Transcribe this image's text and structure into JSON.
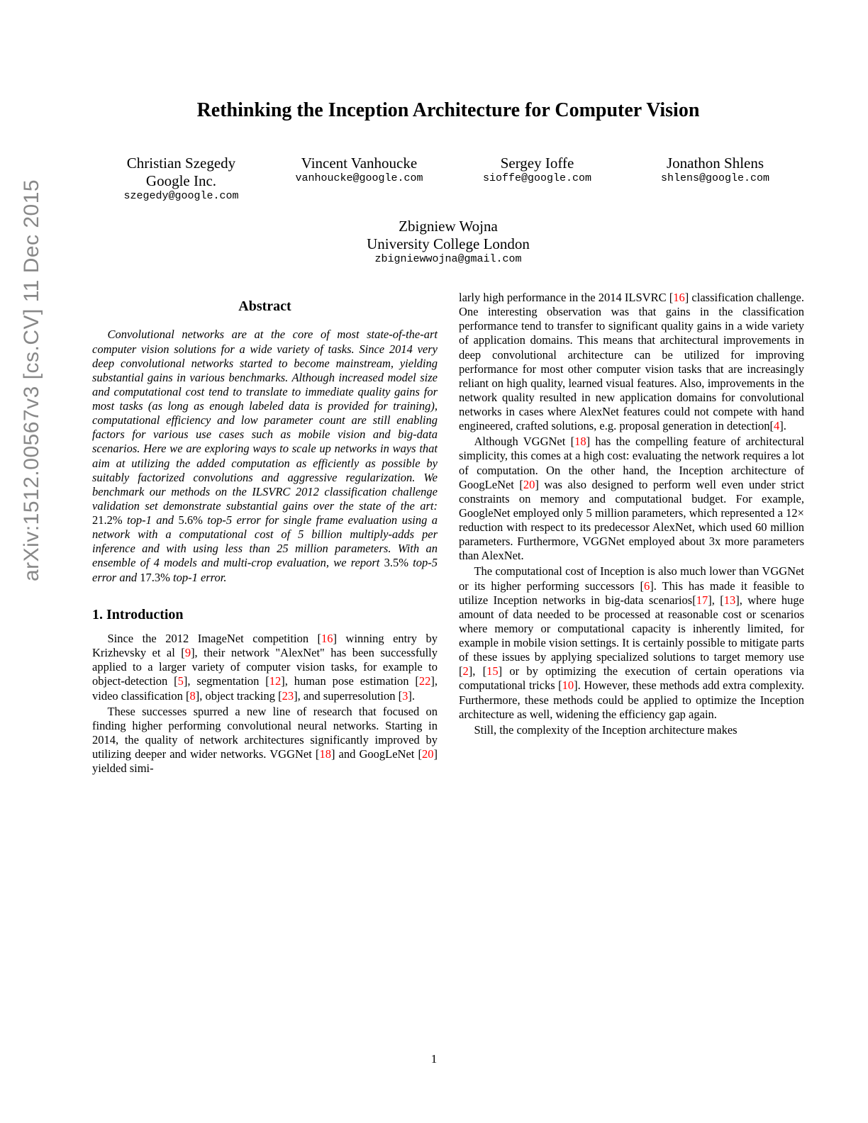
{
  "arxiv_tag": "arXiv:1512.00567v3  [cs.CV]  11 Dec 2015",
  "title": "Rethinking the Inception Architecture for Computer Vision",
  "authors": [
    {
      "name": "Christian Szegedy",
      "affil": "Google Inc.",
      "email": "szegedy@google.com"
    },
    {
      "name": "Vincent Vanhoucke",
      "affil": "",
      "email": "vanhoucke@google.com"
    },
    {
      "name": "Sergey Ioffe",
      "affil": "",
      "email": "sioffe@google.com"
    },
    {
      "name": "Jonathon Shlens",
      "affil": "",
      "email": "shlens@google.com"
    }
  ],
  "author5": {
    "name": "Zbigniew Wojna",
    "affil": "University College London",
    "email": "zbigniewwojna@gmail.com"
  },
  "abstract_heading": "Abstract",
  "abstract_p1a": "Convolutional networks are at the core of most state-of-the-art computer vision solutions for a wide variety of tasks. Since 2014 very deep convolutional networks started to become mainstream, yielding substantial gains in various benchmarks. Although increased model size and computational cost tend to translate to immediate quality gains for most tasks (as long as enough labeled data is provided for training), computational efficiency and low parameter count are still enabling factors for various use cases such as mobile vision and big-data scenarios. Here we are exploring ways to scale up networks in ways that aim at utilizing the added computation as efficiently as possible by suitably factorized convolutions and aggressive regularization. We benchmark our methods on the ILSVRC 2012 classification challenge validation set demonstrate substantial gains over the state of the art: ",
  "abstract_n1": "21.2%",
  "abstract_p1b": " top-1 and ",
  "abstract_n2": "5.6%",
  "abstract_p1c": " top-5 error for single frame evaluation using a network with a computational cost of 5 billion multiply-adds per inference and with using less than 25 million parameters. With an ensemble of 4 models and multi-crop evaluation, we report ",
  "abstract_n3": "3.5%",
  "abstract_p1d": " top-5 error and ",
  "abstract_n4": "17.3%",
  "abstract_p1e": " top-1 error.",
  "intro_heading": "1. Introduction",
  "intro_p1a": "Since the 2012 ImageNet competition [",
  "c16a": "16",
  "intro_p1b": "] winning entry by Krizhevsky et al [",
  "c9": "9",
  "intro_p1c": "], their network \"AlexNet\" has been successfully applied to a larger variety of computer vision tasks, for example to object-detection [",
  "c5": "5",
  "intro_p1d": "], segmentation [",
  "c12": "12",
  "intro_p1e": "], human pose estimation [",
  "c22": "22",
  "intro_p1f": "], video classification [",
  "c8": "8",
  "intro_p1g": "], object tracking [",
  "c23": "23",
  "intro_p1h": "], and superresolution [",
  "c3": "3",
  "intro_p1i": "].",
  "intro_p2a": "These successes spurred a new line of research that focused on finding higher performing convolutional neural networks. Starting in 2014, the quality of network architectures significantly improved by utilizing deeper and wider networks. VGGNet [",
  "c18a": "18",
  "intro_p2b": "] and GoogLeNet [",
  "c20a": "20",
  "intro_p2c": "] yielded simi-",
  "right_p1a": "larly high performance in the 2014 ILSVRC [",
  "c16b": "16",
  "right_p1b": "] classification challenge. One interesting observation was that gains in the classification performance tend to transfer to significant quality gains in a wide variety of application domains. This means that architectural improvements in deep convolutional architecture can be utilized for improving performance for most other computer vision tasks that are increasingly reliant on high quality, learned visual features. Also, improvements in the network quality resulted in new application domains for convolutional networks in cases where AlexNet features could not compete with hand engineered, crafted solutions, e.g. proposal generation in detection[",
  "c4": "4",
  "right_p1c": "].",
  "right_p2a": "Although VGGNet [",
  "c18b": "18",
  "right_p2b": "] has the compelling feature of architectural simplicity, this comes at a high cost: evaluating the network requires a lot of computation. On the other hand, the Inception architecture of GoogLeNet [",
  "c20b": "20",
  "right_p2c": "] was also designed to perform well even under strict constraints on memory and computational budget. For example, GoogleNet employed only 5 million parameters, which represented a 12× reduction with respect to its predecessor AlexNet, which used 60 million parameters. Furthermore, VGGNet employed about 3x more parameters than AlexNet.",
  "right_p3a": "The computational cost of Inception is also much lower than VGGNet or its higher performing successors [",
  "c6": "6",
  "right_p3b": "]. This has made it feasible to utilize Inception networks in big-data scenarios[",
  "c17": "17",
  "right_p3c": "], [",
  "c13": "13",
  "right_p3d": "], where huge amount of data needed to be processed at reasonable cost or scenarios where memory or computational capacity is inherently limited, for example in mobile vision settings. It is certainly possible to mitigate parts of these issues by applying specialized solutions to target memory use [",
  "c2": "2",
  "right_p3e": "], [",
  "c15": "15",
  "right_p3f": "] or by optimizing the execution of certain operations via computational tricks [",
  "c10": "10",
  "right_p3g": "]. However, these methods add extra complexity. Furthermore, these methods could be applied to optimize the Inception architecture as well, widening the efficiency gap again.",
  "right_p4": "Still, the complexity of the Inception architecture makes",
  "page_number": "1"
}
